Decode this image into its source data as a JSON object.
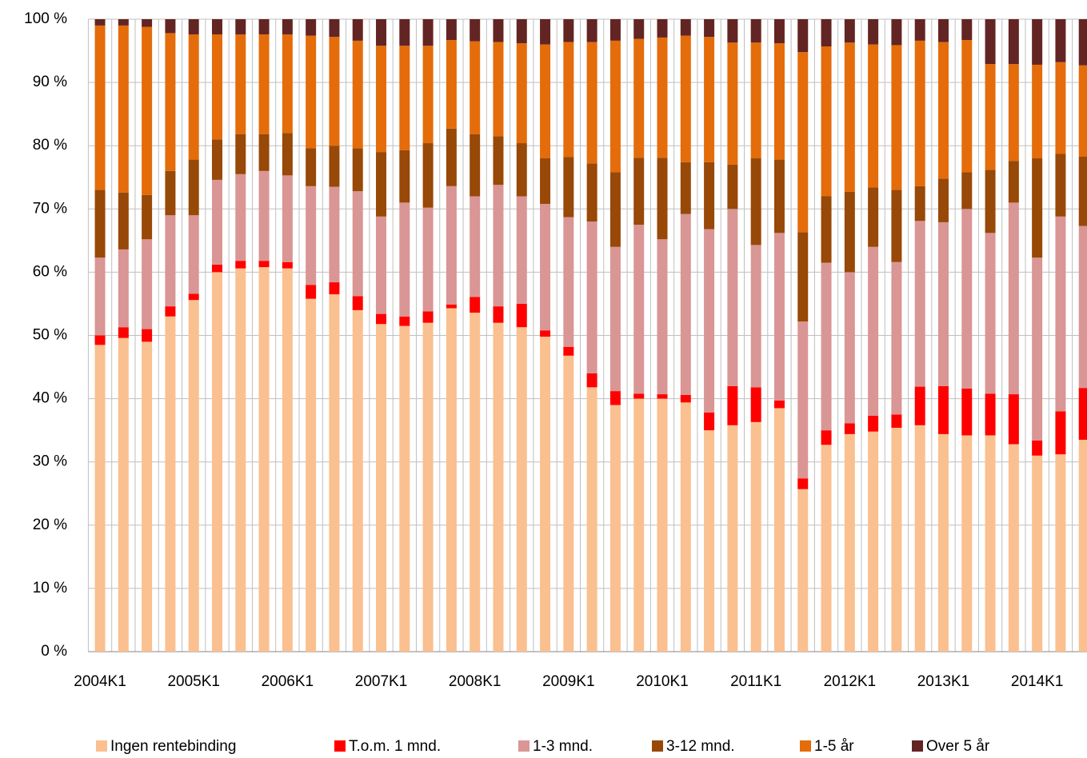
{
  "chart_data": {
    "type": "stacked_bar",
    "categories": [
      "2004K1",
      null,
      null,
      null,
      "2005K1",
      null,
      null,
      null,
      "2006K1",
      null,
      null,
      null,
      "2007K1",
      null,
      null,
      null,
      "2008K1",
      null,
      null,
      null,
      "2009K1",
      null,
      null,
      null,
      "2010K1",
      null,
      null,
      null,
      "2011K1",
      null,
      null,
      null,
      "2012K1",
      null,
      null,
      null,
      "2013K1",
      null,
      null,
      null,
      "2014K1",
      null,
      null
    ],
    "series": [
      {
        "name": "Ingen rentebinding",
        "color": "#fac090",
        "values": [
          48.5,
          49.6,
          49,
          53,
          55.6,
          60,
          60.6,
          60.8,
          60.6,
          55.8,
          56.5,
          54,
          51.8,
          51.5,
          52,
          54.3,
          53.6,
          52,
          51.3,
          49.8,
          46.8,
          41.8,
          39,
          40,
          40,
          39.4,
          35,
          35.8,
          36.3,
          38.5,
          25.7,
          32.7,
          34.4,
          34.8,
          35.4,
          35.8,
          34.4,
          34.2,
          34.2,
          32.8,
          31,
          31.2,
          33.5
        ]
      },
      {
        "name": "T.o.m. 1 mnd.",
        "color": "#ff0000",
        "values": [
          1.5,
          1.7,
          2,
          1.6,
          1,
          1.2,
          1.2,
          1,
          1,
          2.2,
          1.9,
          2.2,
          1.6,
          1.5,
          1.8,
          0.6,
          2.5,
          2.6,
          3.7,
          1,
          1.4,
          2.2,
          2.2,
          0.8,
          0.7,
          1.2,
          2.8,
          6.2,
          5.5,
          1.2,
          1.7,
          2.3,
          1.7,
          2.5,
          2.1,
          6.1,
          7.6,
          7.4,
          6.6,
          7.9,
          2.4,
          6.8,
          8.2
        ]
      },
      {
        "name": "1-3 mnd.",
        "color": "#d99694",
        "values": [
          12.3,
          12.3,
          14.2,
          14.4,
          12.4,
          13.4,
          13.7,
          14.2,
          13.7,
          15.6,
          15.1,
          16.6,
          15.4,
          18,
          16.4,
          18.7,
          15.9,
          19.2,
          17,
          20,
          20.5,
          24,
          22.8,
          26.7,
          24.5,
          28.6,
          29,
          28,
          22.5,
          26.5,
          24.8,
          26.5,
          23.9,
          26.7,
          24.1,
          26.2,
          25.9,
          28.4,
          25.4,
          30.3,
          28.9,
          30.8,
          25.6
        ]
      },
      {
        "name": "3-12 mnd.",
        "color": "#984807",
        "values": [
          10.7,
          9,
          7,
          7,
          8.8,
          6.4,
          6.3,
          5.8,
          6.7,
          6,
          6.5,
          6.8,
          10.2,
          8.3,
          10.2,
          9.1,
          9.8,
          7.7,
          8.4,
          7.2,
          9.5,
          9.2,
          11.8,
          10.6,
          12.9,
          8.2,
          10.6,
          7,
          13.7,
          11.6,
          14.1,
          10.5,
          12.7,
          9.4,
          11.4,
          5.5,
          6.9,
          5.8,
          10,
          6.6,
          15.7,
          9.9,
          11
        ]
      },
      {
        "name": "1-5 år",
        "color": "#e46c0a",
        "values": [
          26,
          26.4,
          26.6,
          21.8,
          19.8,
          16.6,
          15.8,
          15.8,
          15.6,
          17.8,
          17.2,
          17,
          16.8,
          16.5,
          15.4,
          14,
          14.7,
          14.9,
          15.8,
          18,
          18.2,
          19.2,
          20.8,
          18.8,
          19,
          20,
          19.8,
          19.3,
          18.3,
          18.4,
          28.5,
          23.7,
          23.6,
          22.6,
          22.9,
          23,
          21.6,
          20.9,
          16.7,
          15.3,
          14.8,
          14.5,
          14.4
        ]
      },
      {
        "name": "Over 5 år",
        "color": "#632523",
        "values": [
          1,
          1,
          1.2,
          2.2,
          2.4,
          2.4,
          2.4,
          2.4,
          2.4,
          2.6,
          2.8,
          3.4,
          4.2,
          4.2,
          4.2,
          3.3,
          3.5,
          3.6,
          3.8,
          4,
          3.6,
          3.6,
          3.4,
          3.1,
          2.9,
          2.6,
          2.8,
          3.7,
          3.7,
          3.8,
          5.2,
          4.3,
          3.7,
          4,
          4.1,
          3.4,
          3.6,
          3.3,
          7.1,
          7.1,
          7.2,
          6.8,
          7.3
        ]
      }
    ],
    "ylim": [
      0,
      100
    ],
    "yticks": [
      {
        "value": 0,
        "label": "0 %"
      },
      {
        "value": 10,
        "label": "10 %"
      },
      {
        "value": 20,
        "label": "20 %"
      },
      {
        "value": 30,
        "label": "30 %"
      },
      {
        "value": 40,
        "label": "40 %"
      },
      {
        "value": 50,
        "label": "50 %"
      },
      {
        "value": 60,
        "label": "60 %"
      },
      {
        "value": 70,
        "label": "70 %"
      },
      {
        "value": 80,
        "label": "80 %"
      },
      {
        "value": 90,
        "label": "90 %"
      },
      {
        "value": 100,
        "label": "100 %"
      }
    ],
    "grid": true,
    "legend": "bottom"
  }
}
